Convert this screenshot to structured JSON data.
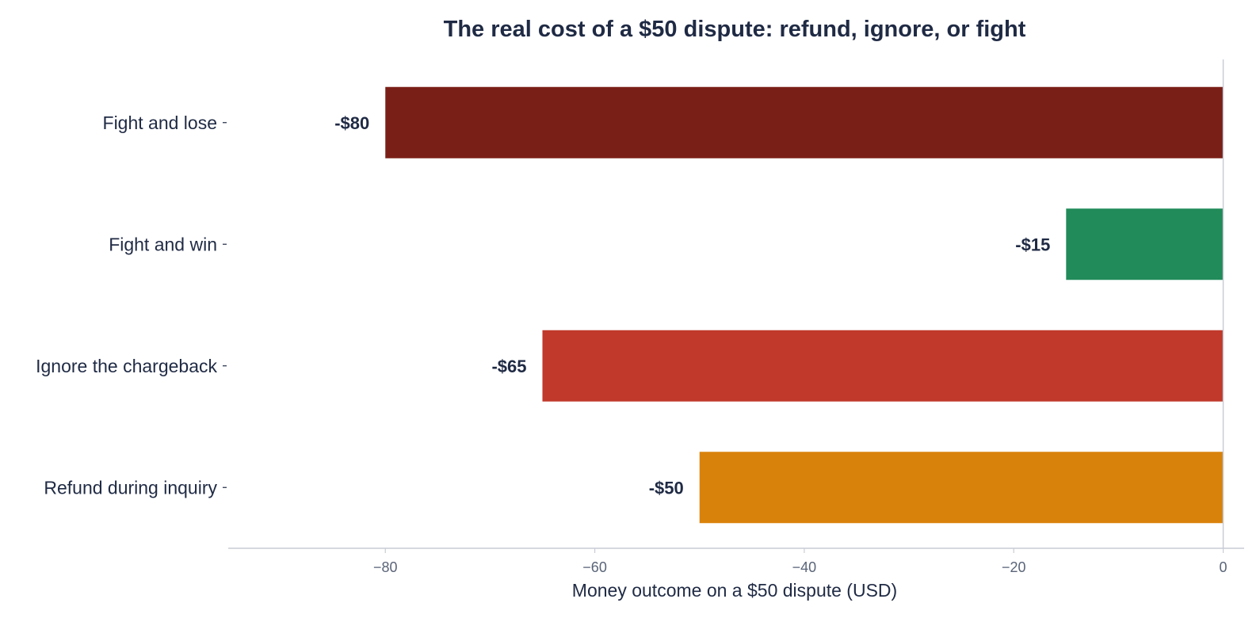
{
  "chart_data": {
    "type": "bar",
    "orientation": "horizontal",
    "title": "The real cost of a $50 dispute: refund, ignore, or fight",
    "xlabel": "Money outcome on a $50 dispute (USD)",
    "ylabel": "",
    "xlim": [
      -95,
      2
    ],
    "xticks": [
      -80,
      -60,
      -40,
      -20,
      0
    ],
    "xtick_labels": [
      "−80",
      "−60",
      "−40",
      "−20",
      "0"
    ],
    "grid": false,
    "categories": [
      "Fight and lose",
      "Fight and win",
      "Ignore the chargeback",
      "Refund during inquiry"
    ],
    "values": [
      -80,
      -15,
      -65,
      -50
    ],
    "value_labels": [
      "-$80",
      "-$15",
      "-$65",
      "-$50"
    ],
    "colors": [
      "#7a1f17",
      "#218b5a",
      "#c0392b",
      "#d9820b"
    ],
    "axis_color": "#c8ccd6",
    "text_color": "#1f2a44",
    "tick_color": "#5a6478"
  }
}
